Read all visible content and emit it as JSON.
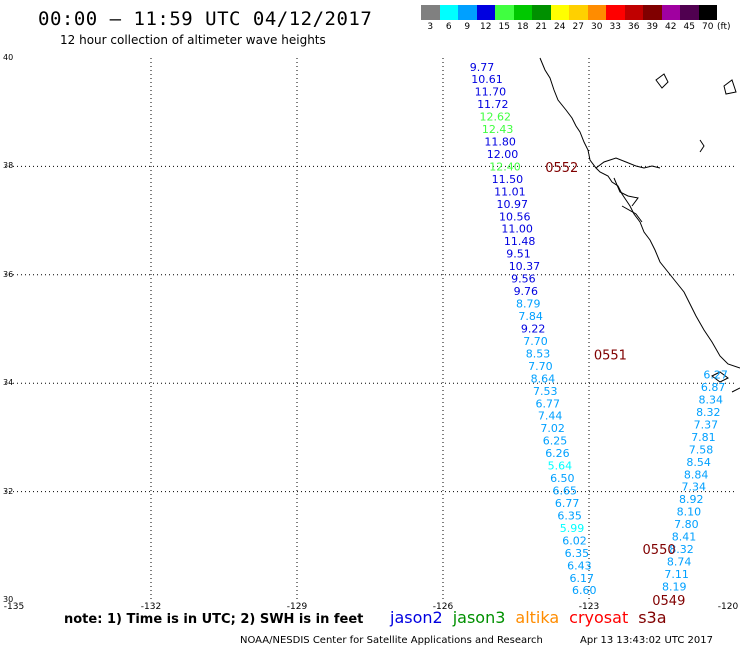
{
  "header": {
    "title": "00:00 – 11:59 UTC 04/12/2017",
    "subtitle": "12 hour collection of altimeter wave heights"
  },
  "legend": {
    "unit": "(ft)",
    "bins": [
      {
        "label": "3",
        "color": "#808080"
      },
      {
        "label": "6",
        "color": "#00ffff"
      },
      {
        "label": "9",
        "color": "#00a0ff"
      },
      {
        "label": "12",
        "color": "#0000e0"
      },
      {
        "label": "15",
        "color": "#40ff40"
      },
      {
        "label": "18",
        "color": "#00c800"
      },
      {
        "label": "21",
        "color": "#009000"
      },
      {
        "label": "24",
        "color": "#ffff00"
      },
      {
        "label": "27",
        "color": "#ffd000"
      },
      {
        "label": "30",
        "color": "#ff8c00"
      },
      {
        "label": "33",
        "color": "#ff0000"
      },
      {
        "label": "36",
        "color": "#c00000"
      },
      {
        "label": "39",
        "color": "#800000"
      },
      {
        "label": "42",
        "color": "#a000a0"
      },
      {
        "label": "45",
        "color": "#500050"
      },
      {
        "label": "70",
        "color": "#000000"
      }
    ]
  },
  "axes": {
    "lat_labels": [
      "40",
      "38",
      "36",
      "34",
      "32",
      "30"
    ],
    "lon_labels": [
      "-135",
      "-132",
      "-129",
      "-126",
      "-123",
      "-120"
    ]
  },
  "times": [
    {
      "text": "0552",
      "lon": -123.9,
      "lat": 37.99
    },
    {
      "text": "0551",
      "lon": -122.9,
      "lat": 34.53
    },
    {
      "text": "0550",
      "lon": -121.9,
      "lat": 30.94
    },
    {
      "text": "0549",
      "lon": -121.7,
      "lat": 30.0
    }
  ],
  "tracks": [
    {
      "name": "track-west",
      "points": [
        {
          "v": "9.77",
          "lon": -125.45,
          "lat": 39.83,
          "c": "#0000e0"
        },
        {
          "v": "10.61",
          "lon": -125.42,
          "lat": 39.61,
          "c": "#0000e0"
        },
        {
          "v": "11.70",
          "lon": -125.35,
          "lat": 39.38,
          "c": "#0000e0"
        },
        {
          "v": "11.72",
          "lon": -125.3,
          "lat": 39.15,
          "c": "#0000e0"
        },
        {
          "v": "12.62",
          "lon": -125.25,
          "lat": 38.92,
          "c": "#40ff40"
        },
        {
          "v": "12.43",
          "lon": -125.2,
          "lat": 38.69,
          "c": "#40ff40"
        },
        {
          "v": "11.80",
          "lon": -125.15,
          "lat": 38.46,
          "c": "#0000e0"
        },
        {
          "v": "12.00",
          "lon": -125.1,
          "lat": 38.23,
          "c": "#0000e0"
        },
        {
          "v": "12.40",
          "lon": -125.05,
          "lat": 38.0,
          "c": "#40ff40"
        },
        {
          "v": "11.50",
          "lon": -125.0,
          "lat": 37.77,
          "c": "#0000e0"
        },
        {
          "v": "11.01",
          "lon": -124.95,
          "lat": 37.54,
          "c": "#0000e0"
        },
        {
          "v": "10.97",
          "lon": -124.9,
          "lat": 37.31,
          "c": "#0000e0"
        },
        {
          "v": "10.56",
          "lon": -124.85,
          "lat": 37.08,
          "c": "#0000e0"
        },
        {
          "v": "11.00",
          "lon": -124.8,
          "lat": 36.85,
          "c": "#0000e0"
        },
        {
          "v": "11.48",
          "lon": -124.75,
          "lat": 36.62,
          "c": "#0000e0"
        },
        {
          "v": "9.51",
          "lon": -124.7,
          "lat": 36.39,
          "c": "#0000e0"
        },
        {
          "v": "10.37",
          "lon": -124.65,
          "lat": 36.16,
          "c": "#0000e0"
        },
        {
          "v": "9.56",
          "lon": -124.6,
          "lat": 35.93,
          "c": "#0000e0"
        },
        {
          "v": "9.76",
          "lon": -124.55,
          "lat": 35.7,
          "c": "#0000e0"
        },
        {
          "v": "8.79",
          "lon": -124.5,
          "lat": 35.47,
          "c": "#00a0ff"
        },
        {
          "v": "7.84",
          "lon": -124.45,
          "lat": 35.24,
          "c": "#00a0ff"
        },
        {
          "v": "9.22",
          "lon": -124.4,
          "lat": 35.01,
          "c": "#0000e0"
        },
        {
          "v": "7.70",
          "lon": -124.35,
          "lat": 34.78,
          "c": "#00a0ff"
        },
        {
          "v": "8.53",
          "lon": -124.3,
          "lat": 34.55,
          "c": "#00a0ff"
        },
        {
          "v": "7.70",
          "lon": -124.25,
          "lat": 34.32,
          "c": "#00a0ff"
        },
        {
          "v": "8.64",
          "lon": -124.2,
          "lat": 34.09,
          "c": "#00a0ff"
        },
        {
          "v": "7.53",
          "lon": -124.15,
          "lat": 33.86,
          "c": "#00a0ff"
        },
        {
          "v": "6.77",
          "lon": -124.1,
          "lat": 33.63,
          "c": "#00a0ff"
        },
        {
          "v": "7.44",
          "lon": -124.05,
          "lat": 33.4,
          "c": "#00a0ff"
        },
        {
          "v": "7.02",
          "lon": -124.0,
          "lat": 33.17,
          "c": "#00a0ff"
        },
        {
          "v": "6.25",
          "lon": -123.95,
          "lat": 32.94,
          "c": "#00a0ff"
        },
        {
          "v": "6.26",
          "lon": -123.9,
          "lat": 32.71,
          "c": "#00a0ff"
        },
        {
          "v": "5.64",
          "lon": -123.85,
          "lat": 32.48,
          "c": "#00ffff"
        },
        {
          "v": "6.50",
          "lon": -123.8,
          "lat": 32.25,
          "c": "#00a0ff"
        },
        {
          "v": "6.65",
          "lon": -123.75,
          "lat": 32.02,
          "c": "#00a0ff"
        },
        {
          "v": "6.77",
          "lon": -123.7,
          "lat": 31.79,
          "c": "#00a0ff"
        },
        {
          "v": "6.35",
          "lon": -123.65,
          "lat": 31.56,
          "c": "#00a0ff"
        },
        {
          "v": "5.99",
          "lon": -123.6,
          "lat": 31.33,
          "c": "#00ffff"
        },
        {
          "v": "6.02",
          "lon": -123.55,
          "lat": 31.1,
          "c": "#00a0ff"
        },
        {
          "v": "6.35",
          "lon": -123.5,
          "lat": 30.87,
          "c": "#00a0ff"
        },
        {
          "v": "6.43",
          "lon": -123.45,
          "lat": 30.64,
          "c": "#00a0ff"
        },
        {
          "v": "6.17",
          "lon": -123.4,
          "lat": 30.41,
          "c": "#00a0ff"
        },
        {
          "v": "6.60",
          "lon": -123.35,
          "lat": 30.18,
          "c": "#00a0ff"
        }
      ]
    },
    {
      "name": "track-east",
      "points": [
        {
          "v": "8.19",
          "lon": -121.5,
          "lat": 30.25,
          "c": "#00a0ff"
        },
        {
          "v": "7.11",
          "lon": -121.45,
          "lat": 30.48,
          "c": "#00a0ff"
        },
        {
          "v": "8.74",
          "lon": -121.4,
          "lat": 30.71,
          "c": "#00a0ff"
        },
        {
          "v": "8.32",
          "lon": -121.35,
          "lat": 30.94,
          "c": "#00a0ff"
        },
        {
          "v": "8.41",
          "lon": -121.3,
          "lat": 31.17,
          "c": "#00a0ff"
        },
        {
          "v": "7.80",
          "lon": -121.25,
          "lat": 31.4,
          "c": "#00a0ff"
        },
        {
          "v": "8.10",
          "lon": -121.2,
          "lat": 31.63,
          "c": "#00a0ff"
        },
        {
          "v": "8.92",
          "lon": -121.15,
          "lat": 31.86,
          "c": "#00a0ff"
        },
        {
          "v": "7.34",
          "lon": -121.1,
          "lat": 32.09,
          "c": "#00a0ff"
        },
        {
          "v": "8.84",
          "lon": -121.05,
          "lat": 32.32,
          "c": "#00a0ff"
        },
        {
          "v": "8.54",
          "lon": -121.0,
          "lat": 32.55,
          "c": "#00a0ff"
        },
        {
          "v": "7.58",
          "lon": -120.95,
          "lat": 32.78,
          "c": "#00a0ff"
        },
        {
          "v": "7.81",
          "lon": -120.9,
          "lat": 33.01,
          "c": "#00a0ff"
        },
        {
          "v": "7.37",
          "lon": -120.85,
          "lat": 33.24,
          "c": "#00a0ff"
        },
        {
          "v": "8.32",
          "lon": -120.8,
          "lat": 33.47,
          "c": "#00a0ff"
        },
        {
          "v": "8.34",
          "lon": -120.75,
          "lat": 33.7,
          "c": "#00a0ff"
        },
        {
          "v": "6.87",
          "lon": -120.7,
          "lat": 33.93,
          "c": "#00a0ff"
        },
        {
          "v": "6.27",
          "lon": -120.65,
          "lat": 34.16,
          "c": "#00a0ff"
        }
      ]
    }
  ],
  "footer": {
    "note": "note: 1) Time is in UTC; 2) SWH is in feet",
    "satellites": [
      {
        "name": "jason2",
        "color": "#0000e0"
      },
      {
        "name": "jason3",
        "color": "#009000"
      },
      {
        "name": "altika",
        "color": "#ff8c00"
      },
      {
        "name": "cryosat",
        "color": "#ff0000"
      },
      {
        "name": "s3a",
        "color": "#800000"
      }
    ],
    "credit": "NOAA/NESDIS Center for Satellite Applications and Research",
    "timestamp": "Apr 13 13:43:02 UTC 2017"
  }
}
